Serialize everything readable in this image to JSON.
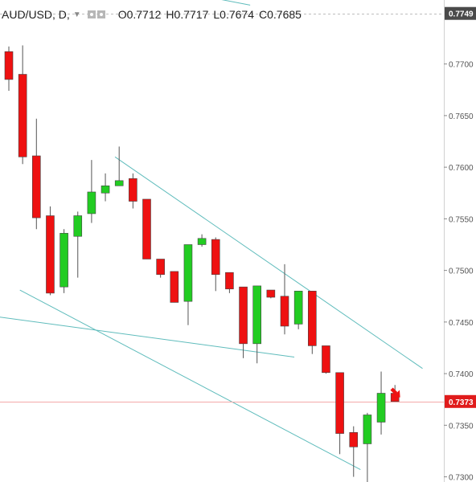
{
  "header": {
    "symbol": "AUD/USD, D,",
    "ohlc": [
      {
        "key": "O",
        "value": "0.7712"
      },
      {
        "key": "H",
        "value": "0.7717"
      },
      {
        "key": "L",
        "value": "0.7674"
      },
      {
        "key": "C",
        "value": "0.7685"
      }
    ]
  },
  "colors": {
    "up": "#22cc22",
    "down": "#ee1111",
    "wick": "#555555",
    "trendline": "#5fbcbc",
    "price_line": "#f3a9a9",
    "axis_label_dark": "#4a4a4a",
    "axis_label_red": "#e01b1b"
  },
  "chart_data": {
    "type": "candlestick",
    "ylim": [
      0.7295,
      0.7762
    ],
    "y_ticks": [
      "0.7700",
      "0.7650",
      "0.7600",
      "0.7550",
      "0.7500",
      "0.7450",
      "0.7400",
      "0.7350",
      "0.7300"
    ],
    "y_tick_values": [
      0.77,
      0.765,
      0.76,
      0.755,
      0.75,
      0.745,
      0.74,
      0.735,
      0.73
    ],
    "marked_prices": [
      {
        "label": "0.7749",
        "value": 0.7749,
        "style": "dashed"
      },
      {
        "label": "0.7373",
        "value": 0.7373,
        "style": "solid"
      }
    ],
    "candles": [
      {
        "o": 0.7712,
        "h": 0.7717,
        "l": 0.7674,
        "c": 0.7685
      },
      {
        "o": 0.769,
        "h": 0.7718,
        "l": 0.7603,
        "c": 0.761
      },
      {
        "o": 0.7611,
        "h": 0.7647,
        "l": 0.754,
        "c": 0.7551
      },
      {
        "o": 0.7553,
        "h": 0.7562,
        "l": 0.7476,
        "c": 0.7478
      },
      {
        "o": 0.7484,
        "h": 0.754,
        "l": 0.7478,
        "c": 0.7536
      },
      {
        "o": 0.7533,
        "h": 0.7557,
        "l": 0.7493,
        "c": 0.7553
      },
      {
        "o": 0.7555,
        "h": 0.7607,
        "l": 0.7546,
        "c": 0.7576
      },
      {
        "o": 0.7575,
        "h": 0.7594,
        "l": 0.7567,
        "c": 0.7582
      },
      {
        "o": 0.7582,
        "h": 0.762,
        "l": 0.7582,
        "c": 0.7587
      },
      {
        "o": 0.7589,
        "h": 0.7594,
        "l": 0.756,
        "c": 0.7567
      },
      {
        "o": 0.7569,
        "h": 0.7569,
        "l": 0.7511,
        "c": 0.7511
      },
      {
        "o": 0.7511,
        "h": 0.751,
        "l": 0.7493,
        "c": 0.7496
      },
      {
        "o": 0.7499,
        "h": 0.7499,
        "l": 0.747,
        "c": 0.7469
      },
      {
        "o": 0.747,
        "h": 0.7525,
        "l": 0.7447,
        "c": 0.7525
      },
      {
        "o": 0.7525,
        "h": 0.7535,
        "l": 0.7523,
        "c": 0.7531
      },
      {
        "o": 0.753,
        "h": 0.7532,
        "l": 0.748,
        "c": 0.7496
      },
      {
        "o": 0.7498,
        "h": 0.7498,
        "l": 0.7478,
        "c": 0.7482
      },
      {
        "o": 0.7484,
        "h": 0.7484,
        "l": 0.7415,
        "c": 0.7429
      },
      {
        "o": 0.7429,
        "h": 0.7485,
        "l": 0.741,
        "c": 0.7485
      },
      {
        "o": 0.7481,
        "h": 0.7481,
        "l": 0.7473,
        "c": 0.7474
      },
      {
        "o": 0.7475,
        "h": 0.7506,
        "l": 0.7438,
        "c": 0.7446
      },
      {
        "o": 0.7448,
        "h": 0.748,
        "l": 0.7443,
        "c": 0.748
      },
      {
        "o": 0.748,
        "h": 0.748,
        "l": 0.7419,
        "c": 0.7427
      },
      {
        "o": 0.7427,
        "h": 0.7427,
        "l": 0.74,
        "c": 0.7401
      },
      {
        "o": 0.7401,
        "h": 0.7401,
        "l": 0.7322,
        "c": 0.7342
      },
      {
        "o": 0.7343,
        "h": 0.7349,
        "l": 0.73,
        "c": 0.7329
      },
      {
        "o": 0.7332,
        "h": 0.7362,
        "l": 0.7292,
        "c": 0.736
      },
      {
        "o": 0.7353,
        "h": 0.7402,
        "l": 0.7341,
        "c": 0.7381
      },
      {
        "o": 0.7381,
        "h": 0.7389,
        "l": 0.7373,
        "c": 0.7373
      }
    ]
  }
}
